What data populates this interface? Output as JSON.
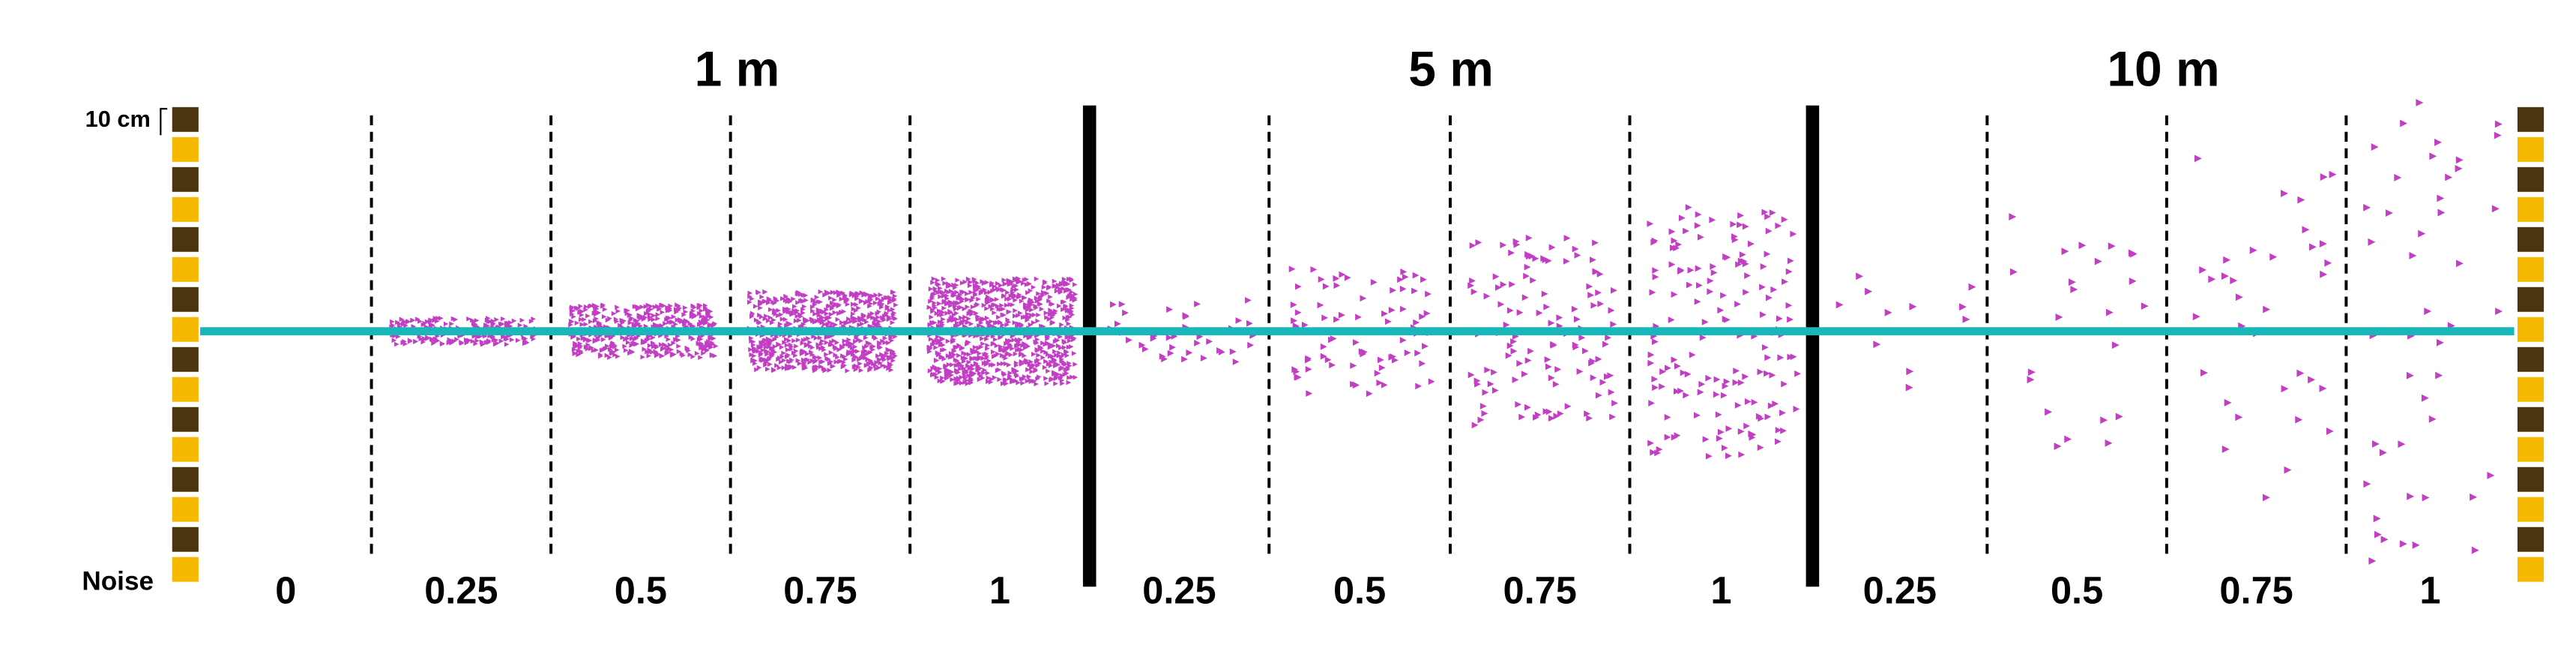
{
  "distance_groups": [
    {
      "label": "1 m",
      "noise_levels": [
        0,
        0.25,
        0.5,
        0.75,
        1
      ]
    },
    {
      "label": "5 m",
      "noise_levels": [
        0.25,
        0.5,
        0.75,
        1
      ]
    },
    {
      "label": "10 m",
      "noise_levels": [
        0.25,
        0.5,
        0.75,
        1
      ]
    }
  ],
  "scale_label": "10 cm",
  "axis_label": "Noise"
}
